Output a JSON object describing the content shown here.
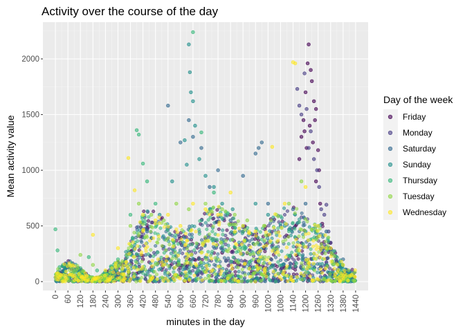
{
  "chart_data": {
    "type": "scatter",
    "title": "Activity over the course of the day",
    "xlabel": "minutes in the day",
    "ylabel": "Mean activity value",
    "xlim": [
      -60,
      1500
    ],
    "ylim": [
      -80,
      2330
    ],
    "x_ticks": [
      0,
      60,
      120,
      180,
      240,
      300,
      360,
      420,
      480,
      540,
      600,
      660,
      720,
      780,
      840,
      900,
      960,
      1020,
      1080,
      1140,
      1200,
      1260,
      1320,
      1380,
      1440
    ],
    "x_tick_labels": [
      "0",
      "60",
      "120",
      "180",
      "240",
      "300",
      "360",
      "420",
      "480",
      "540",
      "600",
      "660",
      "720",
      "780",
      "840",
      "900",
      "960",
      "1020",
      "1080",
      "1140",
      "1200",
      "1260",
      "1320",
      "1380",
      "1440"
    ],
    "y_ticks": [
      0,
      500,
      1000,
      1500,
      2000
    ],
    "y_tick_labels": [
      "0",
      "500",
      "1000",
      "1500",
      "2000"
    ],
    "grid": true,
    "legend": {
      "title": "Day of the week",
      "placement": "right",
      "entries": [
        "Friday",
        "Monday",
        "Saturday",
        "Sunday",
        "Thursday",
        "Tuesday",
        "Wednesday"
      ]
    },
    "series": [
      {
        "name": "Friday",
        "color": "#440154",
        "points": [
          [
            1190,
            1450
          ],
          [
            1200,
            1700
          ],
          [
            1210,
            1960
          ],
          [
            1215,
            2130
          ],
          [
            1225,
            1900
          ],
          [
            1230,
            1800
          ],
          [
            1240,
            1620
          ],
          [
            1250,
            1550
          ],
          [
            1260,
            1180
          ],
          [
            1265,
            1000
          ],
          [
            1270,
            700
          ],
          [
            1280,
            520
          ],
          [
            1180,
            1300
          ],
          [
            1170,
            1100
          ],
          [
            1220,
            1400
          ],
          [
            1235,
            1250
          ],
          [
            1250,
            900
          ],
          [
            1205,
            1200
          ],
          [
            1195,
            1350
          ],
          [
            1245,
            1450
          ],
          [
            1000,
            300
          ],
          [
            800,
            260
          ],
          [
            600,
            350
          ],
          [
            420,
            200
          ],
          [
            200,
            30
          ]
        ]
      },
      {
        "name": "Monday",
        "color": "#443A83",
        "points": [
          [
            1160,
            1730
          ],
          [
            1170,
            1580
          ],
          [
            1180,
            1500
          ],
          [
            1195,
            1870
          ],
          [
            1205,
            1550
          ],
          [
            1215,
            1200
          ],
          [
            1225,
            1350
          ],
          [
            1240,
            1100
          ],
          [
            1255,
            1000
          ],
          [
            1265,
            850
          ],
          [
            1275,
            650
          ],
          [
            1290,
            600
          ],
          [
            1300,
            690
          ],
          [
            1310,
            450
          ],
          [
            1320,
            350
          ],
          [
            1100,
            400
          ],
          [
            900,
            250
          ],
          [
            700,
            300
          ],
          [
            500,
            180
          ],
          [
            300,
            120
          ]
        ]
      },
      {
        "name": "Saturday",
        "color": "#31688E",
        "points": [
          [
            540,
            1580
          ],
          [
            600,
            1250
          ],
          [
            640,
            1450
          ],
          [
            660,
            1300
          ],
          [
            700,
            1200
          ],
          [
            740,
            850
          ],
          [
            780,
            1000
          ],
          [
            840,
            550
          ],
          [
            900,
            950
          ],
          [
            960,
            1150
          ],
          [
            975,
            1200
          ],
          [
            990,
            1250
          ],
          [
            1020,
            700
          ],
          [
            1080,
            500
          ],
          [
            1140,
            650
          ],
          [
            440,
            450
          ],
          [
            380,
            300
          ],
          [
            1200,
            700
          ],
          [
            1300,
            450
          ],
          [
            1380,
            200
          ]
        ]
      },
      {
        "name": "Sunday",
        "color": "#21908C",
        "points": [
          [
            620,
            1270
          ],
          [
            630,
            1050
          ],
          [
            640,
            2130
          ],
          [
            645,
            1880
          ],
          [
            650,
            1700
          ],
          [
            660,
            1620
          ],
          [
            670,
            1400
          ],
          [
            690,
            1100
          ],
          [
            720,
            950
          ],
          [
            760,
            850
          ],
          [
            800,
            700
          ],
          [
            850,
            650
          ],
          [
            900,
            500
          ],
          [
            960,
            700
          ],
          [
            1020,
            600
          ],
          [
            1100,
            500
          ],
          [
            1200,
            450
          ],
          [
            1300,
            300
          ],
          [
            560,
            900
          ],
          [
            500,
            600
          ]
        ]
      },
      {
        "name": "Thursday",
        "color": "#35B779",
        "points": [
          [
            0,
            470
          ],
          [
            10,
            280
          ],
          [
            20,
            130
          ],
          [
            40,
            60
          ],
          [
            80,
            50
          ],
          [
            120,
            120
          ],
          [
            160,
            220
          ],
          [
            200,
            100
          ],
          [
            240,
            80
          ],
          [
            300,
            200
          ],
          [
            360,
            600
          ],
          [
            390,
            1360
          ],
          [
            400,
            1320
          ],
          [
            420,
            1060
          ],
          [
            440,
            900
          ],
          [
            480,
            700
          ],
          [
            660,
            2240
          ],
          [
            700,
            1340
          ],
          [
            760,
            800
          ],
          [
            900,
            450
          ]
        ]
      },
      {
        "name": "Tuesday",
        "color": "#8FD744",
        "points": [
          [
            60,
            30
          ],
          [
            120,
            240
          ],
          [
            180,
            150
          ],
          [
            240,
            60
          ],
          [
            300,
            180
          ],
          [
            360,
            500
          ],
          [
            400,
            700
          ],
          [
            460,
            600
          ],
          [
            520,
            550
          ],
          [
            580,
            700
          ],
          [
            640,
            650
          ],
          [
            720,
            700
          ],
          [
            800,
            650
          ],
          [
            860,
            600
          ],
          [
            920,
            550
          ],
          [
            1000,
            500
          ],
          [
            1060,
            600
          ],
          [
            1120,
            700
          ],
          [
            1180,
            900
          ],
          [
            1260,
            400
          ]
        ]
      },
      {
        "name": "Wednesday",
        "color": "#FDE725",
        "points": [
          [
            20,
            40
          ],
          [
            80,
            60
          ],
          [
            140,
            30
          ],
          [
            180,
            420
          ],
          [
            240,
            100
          ],
          [
            300,
            300
          ],
          [
            350,
            1110
          ],
          [
            380,
            820
          ],
          [
            420,
            600
          ],
          [
            480,
            550
          ],
          [
            540,
            600
          ],
          [
            600,
            500
          ],
          [
            660,
            700
          ],
          [
            720,
            650
          ],
          [
            780,
            600
          ],
          [
            840,
            800
          ],
          [
            900,
            500
          ],
          [
            960,
            450
          ],
          [
            1040,
            1210
          ],
          [
            1100,
            700
          ],
          [
            1140,
            1970
          ],
          [
            1150,
            1960
          ],
          [
            1200,
            850
          ],
          [
            1260,
            500
          ],
          [
            1320,
            300
          ],
          [
            1380,
            150
          ],
          [
            1420,
            60
          ]
        ]
      }
    ]
  }
}
